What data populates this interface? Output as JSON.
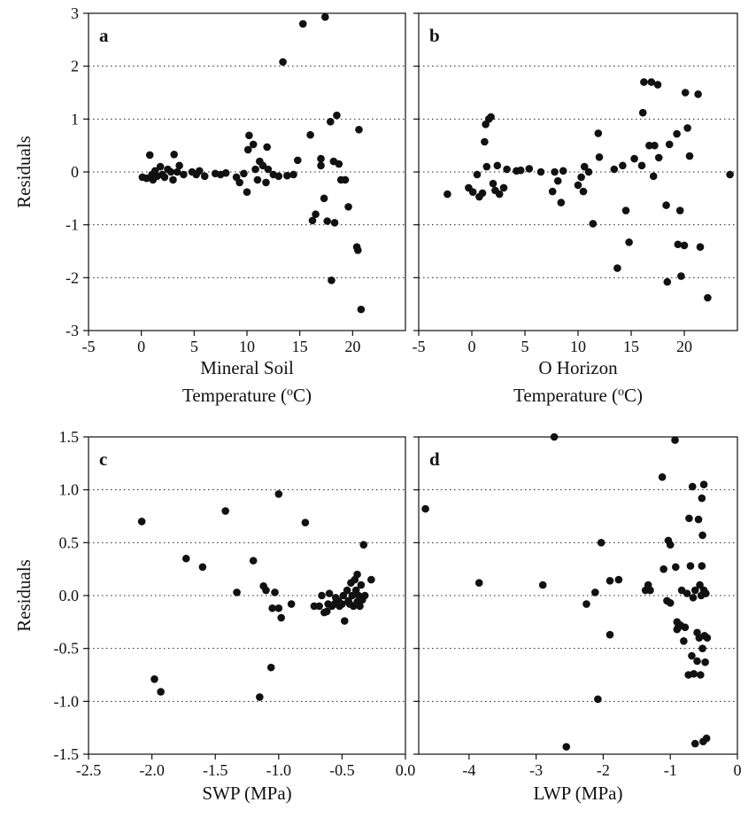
{
  "chart_data": [
    {
      "type": "scatter",
      "panel_label": "a",
      "xlabel": "Mineral Soil",
      "xlabel2": "Temperature (",
      "xlabel_sup": "o",
      "xlabel_tail": "C)",
      "ylabel": "Residuals",
      "xlim": [
        -5,
        25
      ],
      "ylim": [
        -3,
        3
      ],
      "xticks": [
        -5,
        0,
        5,
        10,
        15,
        20
      ],
      "xtick_labels": [
        "-5",
        "0",
        "5",
        "10",
        "15",
        "20"
      ],
      "yticks": [
        -3,
        -2,
        -1,
        0,
        1,
        2,
        3
      ],
      "ytick_labels": [
        "-3",
        "-2",
        "-1",
        "0",
        "1",
        "2",
        "3"
      ],
      "gridlines_y": [
        -2,
        -1,
        0,
        1,
        2
      ],
      "grid": "horizontal dotted",
      "points": [
        [
          0.1,
          -0.1
        ],
        [
          0.5,
          -0.12
        ],
        [
          0.8,
          0.32
        ],
        [
          1.0,
          -0.05
        ],
        [
          1.1,
          -0.15
        ],
        [
          1.3,
          0.02
        ],
        [
          1.5,
          -0.08
        ],
        [
          1.8,
          0.1
        ],
        [
          2.0,
          -0.05
        ],
        [
          2.2,
          -0.1
        ],
        [
          2.5,
          0.05
        ],
        [
          2.8,
          0.0
        ],
        [
          3.0,
          -0.15
        ],
        [
          3.1,
          0.33
        ],
        [
          3.4,
          0.0
        ],
        [
          3.6,
          0.12
        ],
        [
          4.0,
          -0.05
        ],
        [
          4.8,
          0.0
        ],
        [
          5.2,
          -0.05
        ],
        [
          5.5,
          0.02
        ],
        [
          6.0,
          -0.08
        ],
        [
          7.0,
          -0.03
        ],
        [
          7.5,
          -0.05
        ],
        [
          8.0,
          -0.02
        ],
        [
          9.0,
          -0.1
        ],
        [
          9.3,
          -0.2
        ],
        [
          9.7,
          -0.03
        ],
        [
          10.0,
          -0.38
        ],
        [
          10.1,
          0.42
        ],
        [
          10.2,
          0.69
        ],
        [
          10.6,
          0.52
        ],
        [
          10.8,
          0.05
        ],
        [
          11.0,
          -0.15
        ],
        [
          11.2,
          0.2
        ],
        [
          11.5,
          0.12
        ],
        [
          11.8,
          -0.2
        ],
        [
          11.9,
          0.47
        ],
        [
          12.0,
          0.05
        ],
        [
          12.5,
          -0.05
        ],
        [
          13.0,
          -0.08
        ],
        [
          13.4,
          2.08
        ],
        [
          13.8,
          -0.07
        ],
        [
          14.4,
          -0.05
        ],
        [
          14.8,
          0.22
        ],
        [
          15.3,
          2.8
        ],
        [
          16.0,
          0.7
        ],
        [
          16.2,
          -0.92
        ],
        [
          16.5,
          -0.8
        ],
        [
          17.0,
          0.25
        ],
        [
          17.0,
          0.12
        ],
        [
          17.3,
          -0.5
        ],
        [
          17.4,
          2.93
        ],
        [
          17.6,
          -0.93
        ],
        [
          17.9,
          0.95
        ],
        [
          18.0,
          -2.05
        ],
        [
          18.2,
          0.2
        ],
        [
          18.3,
          -0.96
        ],
        [
          18.5,
          1.07
        ],
        [
          18.7,
          0.15
        ],
        [
          18.9,
          -0.15
        ],
        [
          19.3,
          -0.15
        ],
        [
          19.6,
          -0.66
        ],
        [
          20.4,
          -1.42
        ],
        [
          20.5,
          -1.48
        ],
        [
          20.6,
          0.8
        ],
        [
          20.8,
          -2.6
        ]
      ]
    },
    {
      "type": "scatter",
      "panel_label": "b",
      "xlabel": "O Horizon",
      "xlabel2": "Temperature (",
      "xlabel_sup": "o",
      "xlabel_tail": "C)",
      "ylabel": "",
      "xlim": [
        -5,
        25
      ],
      "ylim": [
        -3,
        3
      ],
      "xticks": [
        -5,
        0,
        5,
        10,
        15,
        20
      ],
      "xtick_labels": [
        "-5",
        "0",
        "5",
        "10",
        "15",
        "20"
      ],
      "yticks": [
        -3,
        -2,
        -1,
        0,
        1,
        2,
        3
      ],
      "ytick_labels": [],
      "gridlines_y": [
        -2,
        -1,
        0,
        1,
        2
      ],
      "grid": "horizontal dotted",
      "points": [
        [
          -2.3,
          -0.42
        ],
        [
          -0.3,
          -0.3
        ],
        [
          0.1,
          -0.38
        ],
        [
          0.5,
          -0.05
        ],
        [
          0.7,
          -0.47
        ],
        [
          1.0,
          -0.4
        ],
        [
          1.2,
          0.57
        ],
        [
          1.3,
          0.9
        ],
        [
          1.4,
          0.1
        ],
        [
          1.6,
          1.0
        ],
        [
          1.8,
          1.04
        ],
        [
          2.0,
          -0.22
        ],
        [
          2.2,
          -0.35
        ],
        [
          2.4,
          0.12
        ],
        [
          2.6,
          -0.42
        ],
        [
          3.0,
          -0.3
        ],
        [
          3.3,
          0.05
        ],
        [
          4.2,
          0.02
        ],
        [
          4.6,
          0.03
        ],
        [
          5.4,
          0.06
        ],
        [
          6.5,
          0.0
        ],
        [
          7.6,
          -0.37
        ],
        [
          7.8,
          0.0
        ],
        [
          8.1,
          -0.17
        ],
        [
          8.4,
          -0.58
        ],
        [
          8.6,
          0.02
        ],
        [
          10.0,
          -0.25
        ],
        [
          10.3,
          -0.1
        ],
        [
          10.5,
          -0.37
        ],
        [
          10.6,
          0.1
        ],
        [
          11.0,
          0.0
        ],
        [
          11.4,
          -0.98
        ],
        [
          11.9,
          0.73
        ],
        [
          12.0,
          0.28
        ],
        [
          13.4,
          0.05
        ],
        [
          13.7,
          -1.82
        ],
        [
          14.2,
          0.12
        ],
        [
          14.5,
          -0.73
        ],
        [
          14.8,
          -1.33
        ],
        [
          15.3,
          0.25
        ],
        [
          16.0,
          0.12
        ],
        [
          16.1,
          1.12
        ],
        [
          16.2,
          1.7
        ],
        [
          16.7,
          0.5
        ],
        [
          16.9,
          1.7
        ],
        [
          17.1,
          -0.08
        ],
        [
          17.2,
          0.5
        ],
        [
          17.5,
          1.65
        ],
        [
          17.6,
          0.27
        ],
        [
          18.3,
          -0.63
        ],
        [
          18.4,
          -2.08
        ],
        [
          18.6,
          0.52
        ],
        [
          19.3,
          0.72
        ],
        [
          19.4,
          -1.37
        ],
        [
          19.6,
          -0.73
        ],
        [
          19.7,
          -1.97
        ],
        [
          20.0,
          -1.39
        ],
        [
          20.1,
          1.5
        ],
        [
          20.3,
          0.83
        ],
        [
          20.5,
          0.3
        ],
        [
          21.3,
          1.47
        ],
        [
          21.5,
          -1.42
        ],
        [
          22.2,
          -2.38
        ],
        [
          24.3,
          -0.05
        ]
      ]
    },
    {
      "type": "scatter",
      "panel_label": "c",
      "xlabel": "SWP (MPa)",
      "ylabel": "Residuals",
      "xlim": [
        -2.5,
        0.0
      ],
      "ylim": [
        -1.5,
        1.5
      ],
      "xticks": [
        -2.5,
        -2.0,
        -1.5,
        -1.0,
        -0.5,
        0.0
      ],
      "xtick_labels": [
        "-2.5",
        "-2.0",
        "-1.5",
        "-1.0",
        "-0.5",
        "0.0"
      ],
      "yticks": [
        -1.5,
        -1.0,
        -0.5,
        0.0,
        0.5,
        1.0,
        1.5
      ],
      "ytick_labels": [
        "-1.5",
        "-1.0",
        "-0.5",
        "0.0",
        "0.5",
        "1.0",
        "1.5"
      ],
      "gridlines_y": [
        -1.0,
        -0.5,
        0.0,
        0.5,
        1.0
      ],
      "grid": "horizontal dotted",
      "points": [
        [
          -2.08,
          0.7
        ],
        [
          -1.98,
          -0.79
        ],
        [
          -1.93,
          -0.91
        ],
        [
          -1.73,
          0.35
        ],
        [
          -1.6,
          0.27
        ],
        [
          -1.42,
          0.8
        ],
        [
          -1.33,
          0.03
        ],
        [
          -1.2,
          0.33
        ],
        [
          -1.15,
          -0.96
        ],
        [
          -1.12,
          0.09
        ],
        [
          -1.1,
          0.05
        ],
        [
          -1.06,
          -0.68
        ],
        [
          -1.05,
          -0.12
        ],
        [
          -1.03,
          0.03
        ],
        [
          -1.0,
          -0.12
        ],
        [
          -1.0,
          0.96
        ],
        [
          -0.98,
          -0.21
        ],
        [
          -0.9,
          -0.08
        ],
        [
          -0.79,
          0.69
        ],
        [
          -0.72,
          -0.1
        ],
        [
          -0.68,
          -0.1
        ],
        [
          -0.66,
          0.0
        ],
        [
          -0.64,
          -0.16
        ],
        [
          -0.62,
          -0.15
        ],
        [
          -0.61,
          -0.08
        ],
        [
          -0.6,
          0.02
        ],
        [
          -0.58,
          -0.1
        ],
        [
          -0.56,
          -0.08
        ],
        [
          -0.55,
          -0.02
        ],
        [
          -0.53,
          -0.05
        ],
        [
          -0.52,
          -0.1
        ],
        [
          -0.5,
          -0.08
        ],
        [
          -0.49,
          0.0
        ],
        [
          -0.48,
          -0.24
        ],
        [
          -0.46,
          0.05
        ],
        [
          -0.45,
          -0.05
        ],
        [
          -0.44,
          -0.08
        ],
        [
          -0.43,
          0.12
        ],
        [
          -0.42,
          0.0
        ],
        [
          -0.41,
          -0.1
        ],
        [
          -0.4,
          0.15
        ],
        [
          -0.39,
          0.05
        ],
        [
          -0.38,
          -0.06
        ],
        [
          -0.38,
          0.2
        ],
        [
          -0.37,
          0.0
        ],
        [
          -0.36,
          -0.1
        ],
        [
          -0.35,
          0.1
        ],
        [
          -0.34,
          -0.04
        ],
        [
          -0.33,
          0.48
        ],
        [
          -0.32,
          0.0
        ],
        [
          -0.27,
          0.15
        ]
      ]
    },
    {
      "type": "scatter",
      "panel_label": "d",
      "xlabel": "LWP (MPa)",
      "ylabel": "",
      "xlim": [
        -4.75,
        0
      ],
      "ylim": [
        -1.5,
        1.5
      ],
      "xticks": [
        -4,
        -3,
        -2,
        -1,
        0
      ],
      "xtick_labels": [
        "-4",
        "-3",
        "-2",
        "-1",
        "0"
      ],
      "yticks": [
        -1.5,
        -1.0,
        -0.5,
        0.0,
        0.5,
        1.0,
        1.5
      ],
      "ytick_labels": [],
      "gridlines_y": [
        -1.0,
        -0.5,
        0.0,
        0.5,
        1.0
      ],
      "grid": "horizontal dotted",
      "points": [
        [
          -4.65,
          0.82
        ],
        [
          -3.85,
          0.12
        ],
        [
          -2.9,
          0.1
        ],
        [
          -2.73,
          1.5
        ],
        [
          -2.55,
          -1.43
        ],
        [
          -2.25,
          -0.08
        ],
        [
          -2.12,
          0.03
        ],
        [
          -2.08,
          -0.98
        ],
        [
          -2.03,
          0.5
        ],
        [
          -1.9,
          -0.37
        ],
        [
          -1.9,
          0.14
        ],
        [
          -1.77,
          0.15
        ],
        [
          -1.37,
          0.05
        ],
        [
          -1.33,
          0.1
        ],
        [
          -1.3,
          0.05
        ],
        [
          -1.12,
          1.12
        ],
        [
          -1.1,
          0.25
        ],
        [
          -1.05,
          -0.05
        ],
        [
          -1.03,
          0.52
        ],
        [
          -1.0,
          -0.07
        ],
        [
          -1.0,
          0.48
        ],
        [
          -0.93,
          1.47
        ],
        [
          -0.92,
          0.27
        ],
        [
          -0.9,
          -0.25
        ],
        [
          -0.9,
          -0.32
        ],
        [
          -0.88,
          -0.3
        ],
        [
          -0.85,
          -0.28
        ],
        [
          -0.83,
          0.05
        ],
        [
          -0.8,
          -0.43
        ],
        [
          -0.78,
          -0.3
        ],
        [
          -0.75,
          0.02
        ],
        [
          -0.73,
          -0.75
        ],
        [
          -0.72,
          0.73
        ],
        [
          -0.7,
          0.28
        ],
        [
          -0.68,
          -0.57
        ],
        [
          -0.67,
          1.03
        ],
        [
          -0.66,
          -0.02
        ],
        [
          -0.65,
          -0.74
        ],
        [
          -0.63,
          0.05
        ],
        [
          -0.6,
          -0.35
        ],
        [
          -0.6,
          -0.62
        ],
        [
          -0.58,
          0.72
        ],
        [
          -0.57,
          -0.4
        ],
        [
          -0.56,
          0.1
        ],
        [
          -0.55,
          -0.75
        ],
        [
          -0.54,
          0.0
        ],
        [
          -0.53,
          0.92
        ],
        [
          -0.53,
          0.28
        ],
        [
          -0.52,
          -0.5
        ],
        [
          -0.52,
          0.57
        ],
        [
          -0.51,
          -1.38
        ],
        [
          -0.5,
          0.05
        ],
        [
          -0.5,
          1.05
        ],
        [
          -0.49,
          -0.38
        ],
        [
          -0.48,
          -0.63
        ],
        [
          -0.47,
          0.02
        ],
        [
          -0.46,
          -1.35
        ],
        [
          -0.45,
          -0.4
        ],
        [
          -0.63,
          -1.4
        ]
      ]
    }
  ]
}
